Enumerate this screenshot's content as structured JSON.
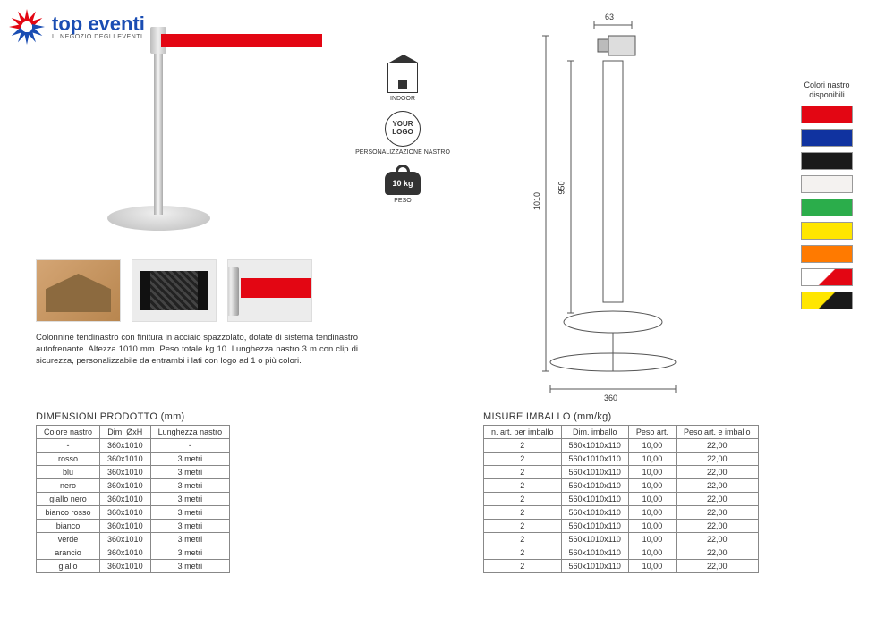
{
  "logo": {
    "main": "top eventi",
    "sub": "IL NEGOZIO DEGLI EVENTI",
    "burst_red": "#e30613",
    "burst_blue": "#1a4db3"
  },
  "icons": {
    "indoor": "INDOOR",
    "your_logo": "YOUR LOGO",
    "personalizzazione": "PERSONALIZZAZIONE NASTRO",
    "weight_value": "10 kg",
    "weight_label": "PESO"
  },
  "description": "Colonnine tendinastro con finitura in acciaio spazzolato, dotate di sistema tendinastro autofrenante. Altezza 1010 mm. Peso totale kg 10. Lunghezza nastro 3 m con clip di sicurezza, personalizzabile da entrambi i lati con logo ad 1 o più colori.",
  "diagram": {
    "top_width": "63",
    "height_outer": "1010",
    "height_inner": "950",
    "base_width": "360"
  },
  "colors": {
    "title": "Colori nastro disponibili",
    "swatches": [
      {
        "style": "background:#e30613"
      },
      {
        "style": "background:#1033a0"
      },
      {
        "style": "background:#1a1a1a"
      },
      {
        "style": "background:#f4f2f0"
      },
      {
        "style": "background:#2bad4b"
      },
      {
        "style": "background:#ffe600"
      },
      {
        "style": "background:#ff7a00"
      },
      {
        "style": "background:linear-gradient(135deg,#fff 49%,#e30613 51%)"
      },
      {
        "style": "background:linear-gradient(135deg,#ffe600 49%,#1a1a1a 51%)"
      }
    ]
  },
  "table_left": {
    "title": "DIMENSIONI PRODOTTO (mm)",
    "headers": [
      "Colore nastro",
      "Dim. ØxH",
      "Lunghezza nastro"
    ],
    "rows": [
      [
        "-",
        "360x1010",
        "-"
      ],
      [
        "rosso",
        "360x1010",
        "3 metri"
      ],
      [
        "blu",
        "360x1010",
        "3 metri"
      ],
      [
        "nero",
        "360x1010",
        "3 metri"
      ],
      [
        "giallo nero",
        "360x1010",
        "3 metri"
      ],
      [
        "bianco rosso",
        "360x1010",
        "3 metri"
      ],
      [
        "bianco",
        "360x1010",
        "3 metri"
      ],
      [
        "verde",
        "360x1010",
        "3 metri"
      ],
      [
        "arancio",
        "360x1010",
        "3 metri"
      ],
      [
        "giallo",
        "360x1010",
        "3 metri"
      ]
    ]
  },
  "table_right": {
    "title": "MISURE IMBALLO (mm/kg)",
    "headers": [
      "n. art. per imballo",
      "Dim. imballo",
      "Peso art.",
      "Peso art. e imballo"
    ],
    "rows": [
      [
        "2",
        "560x1010x110",
        "10,00",
        "22,00"
      ],
      [
        "2",
        "560x1010x110",
        "10,00",
        "22,00"
      ],
      [
        "2",
        "560x1010x110",
        "10,00",
        "22,00"
      ],
      [
        "2",
        "560x1010x110",
        "10,00",
        "22,00"
      ],
      [
        "2",
        "560x1010x110",
        "10,00",
        "22,00"
      ],
      [
        "2",
        "560x1010x110",
        "10,00",
        "22,00"
      ],
      [
        "2",
        "560x1010x110",
        "10,00",
        "22,00"
      ],
      [
        "2",
        "560x1010x110",
        "10,00",
        "22,00"
      ],
      [
        "2",
        "560x1010x110",
        "10,00",
        "22,00"
      ],
      [
        "2",
        "560x1010x110",
        "10,00",
        "22,00"
      ]
    ]
  }
}
